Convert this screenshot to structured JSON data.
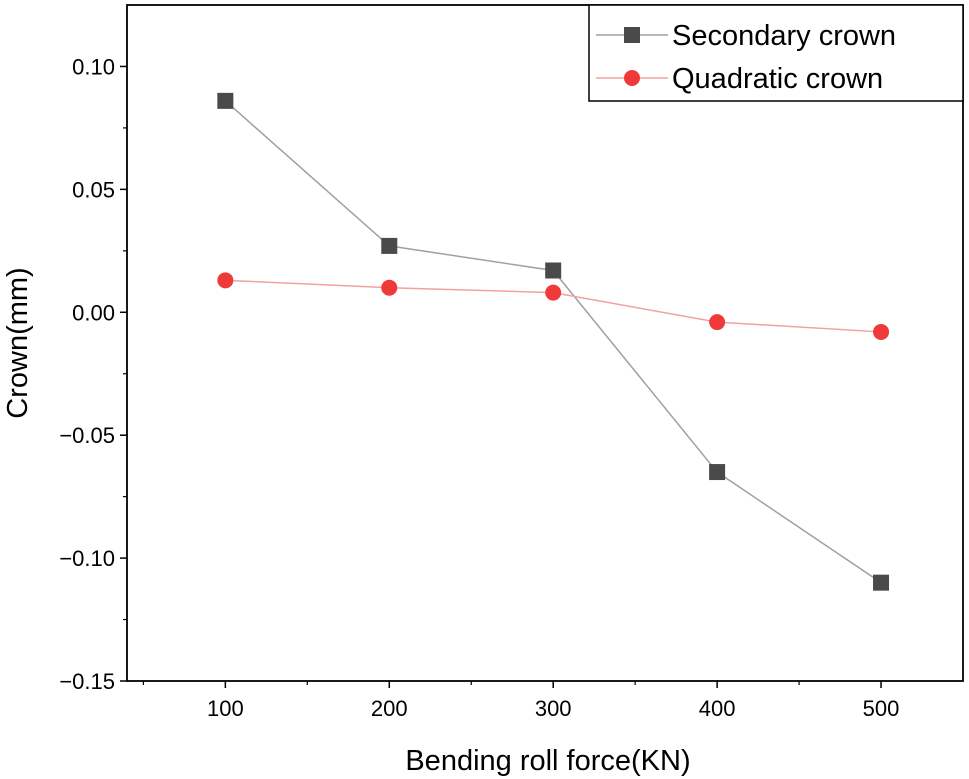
{
  "chart_data": {
    "type": "line",
    "title": "",
    "xlabel": "Bending roll force(KN)",
    "ylabel": "Crown(mm)",
    "x": [
      100,
      200,
      300,
      400,
      500
    ],
    "xlim": [
      40,
      550
    ],
    "ylim": [
      -0.15,
      0.125
    ],
    "xticks": [
      100,
      200,
      300,
      400,
      500
    ],
    "xtick_labels": [
      "100",
      "200",
      "300",
      "400",
      "500"
    ],
    "yticks": [
      -0.15,
      -0.1,
      -0.05,
      0.0,
      0.05,
      0.1
    ],
    "ytick_labels": [
      "−0.15",
      "−0.10",
      "−0.05",
      "0.00",
      "0.05",
      "0.10"
    ],
    "grid": false,
    "legend_position": "top-right",
    "series": [
      {
        "name": "Secondary crown",
        "marker": "square",
        "color": "#4a4a4a",
        "line_color": "#a0a0a0",
        "values": [
          0.086,
          0.027,
          0.017,
          -0.065,
          -0.11
        ]
      },
      {
        "name": "Quadratic crown",
        "marker": "circle",
        "color": "#f03a3a",
        "line_color": "#f5a0a0",
        "values": [
          0.013,
          0.01,
          0.008,
          -0.004,
          -0.008
        ]
      }
    ]
  }
}
